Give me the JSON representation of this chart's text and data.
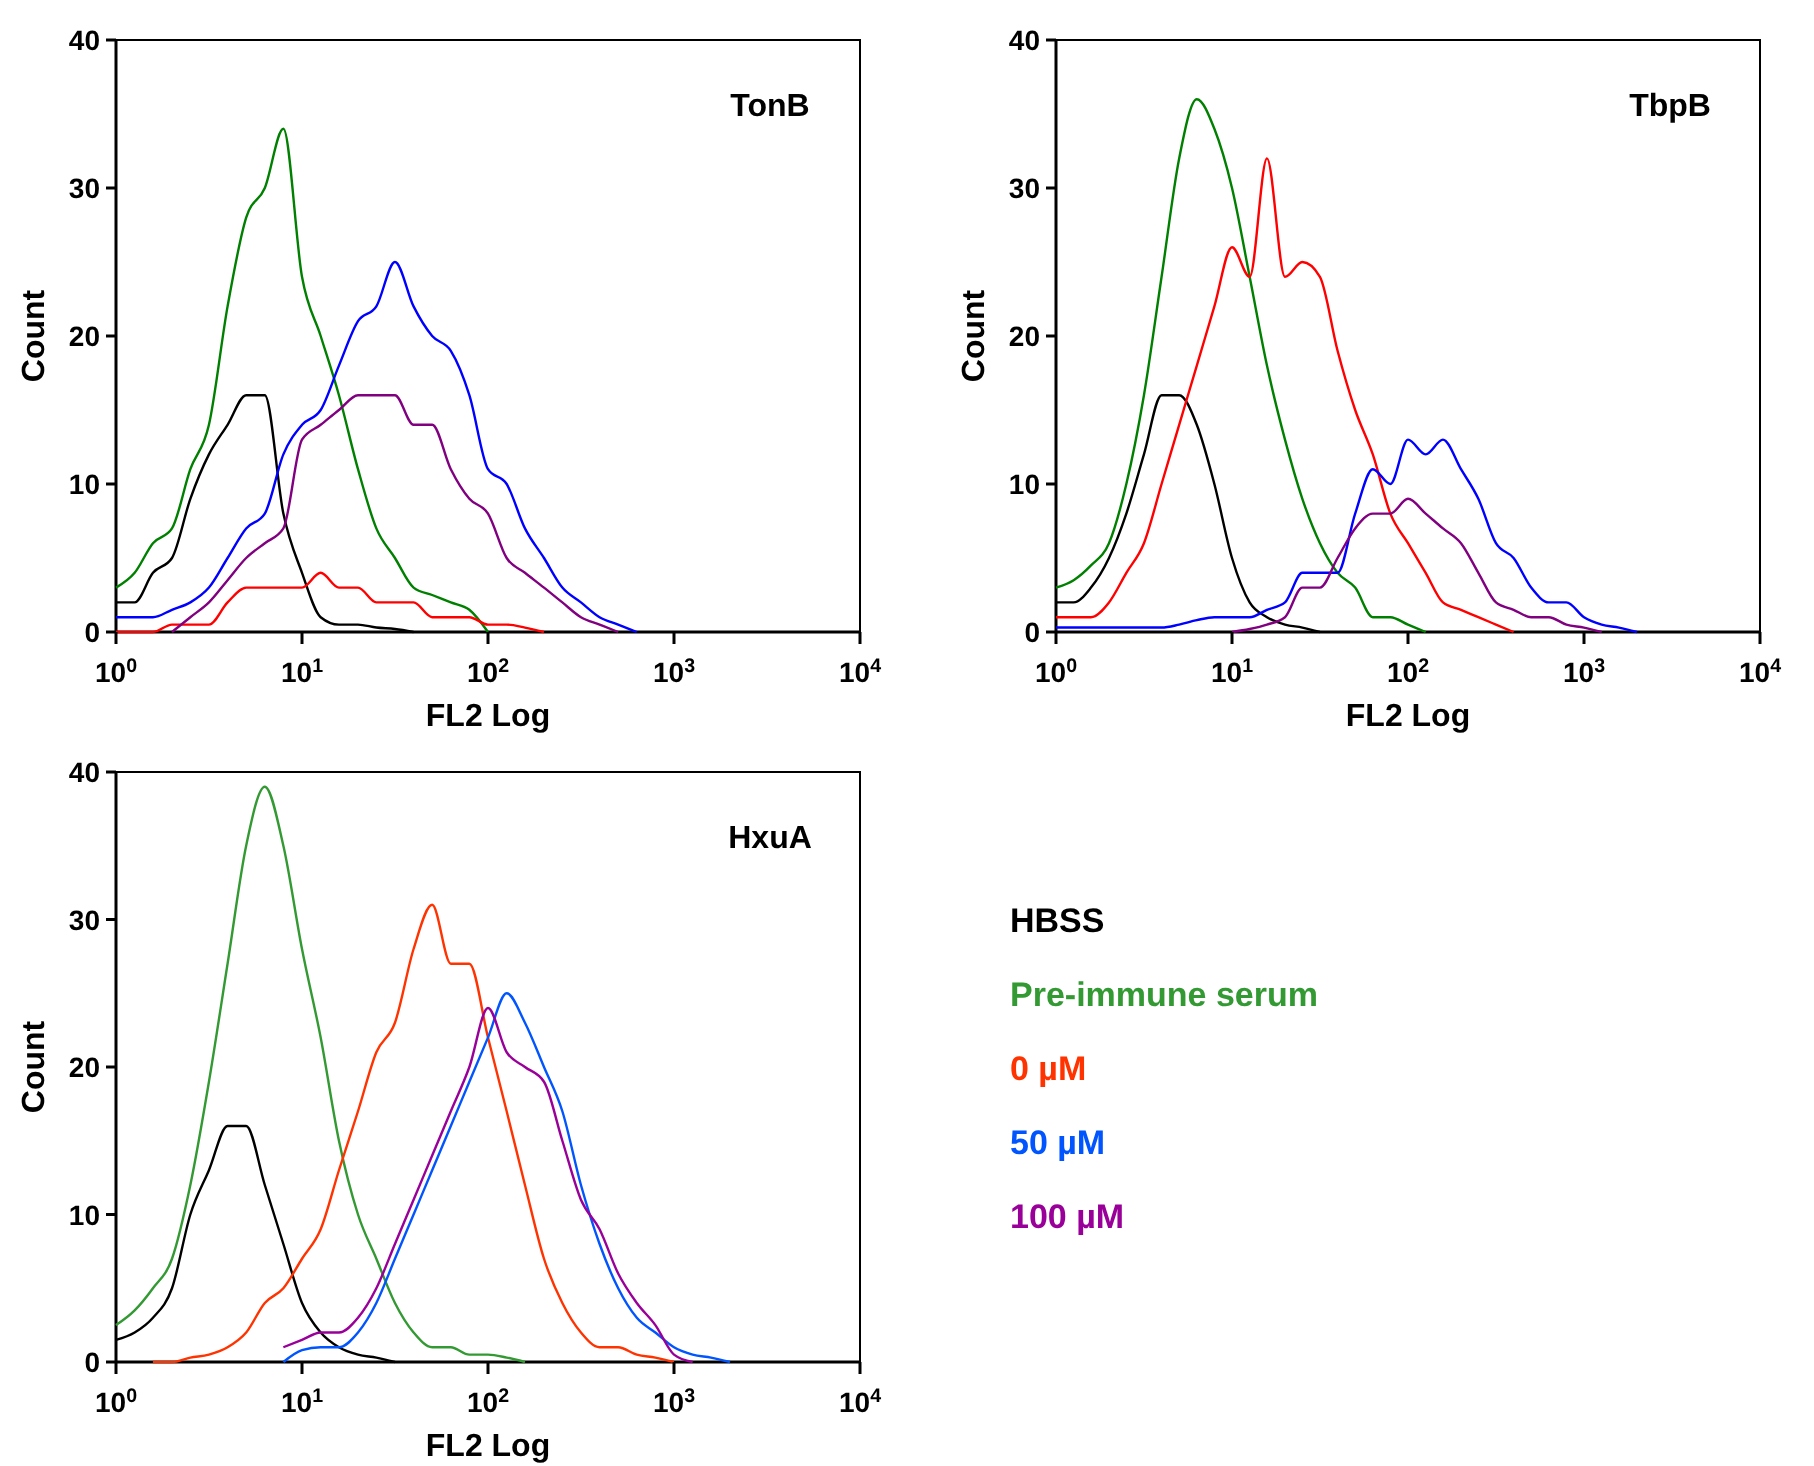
{
  "chart_data": [
    {
      "type": "line",
      "title": "TonB",
      "xlabel": "FL2 Log",
      "ylabel": "Count",
      "log": "x",
      "xlim": [
        1,
        10000
      ],
      "ylim": [
        0,
        40
      ],
      "xticks": [
        {
          "value": 1,
          "label": "10$^{0}$"
        },
        {
          "value": 10,
          "label": "10$^{1}$"
        },
        {
          "value": 100,
          "label": "10$^{2}$"
        },
        {
          "value": 1000,
          "label": "10$^{3}$"
        },
        {
          "value": 10000,
          "label": "10$^{4}$"
        }
      ],
      "yticks": [
        0,
        10,
        20,
        30,
        40
      ],
      "grid": false,
      "legend": false,
      "x": [
        1,
        1.26,
        1.58,
        2,
        2.51,
        3.16,
        3.98,
        5.01,
        6.31,
        7.94,
        10,
        12.6,
        15.8,
        20,
        25.1,
        31.6,
        39.8,
        50.1,
        63.1,
        79.4,
        100,
        126,
        158,
        200,
        251,
        316,
        398,
        501,
        631
      ],
      "series": [
        {
          "color": "#000000",
          "values": [
            2,
            2,
            4,
            5,
            9,
            12,
            14,
            16,
            16,
            8,
            4,
            1,
            0.5,
            0.5,
            0.3,
            0.2,
            0,
            null,
            null,
            null,
            null,
            null,
            null,
            null,
            null,
            null,
            null,
            null,
            null
          ]
        },
        {
          "color": "#008000",
          "values": [
            3,
            4,
            6,
            7,
            11,
            14,
            22,
            28,
            30,
            34,
            24,
            20,
            16,
            11,
            7,
            5,
            3,
            2.5,
            2,
            1.5,
            0,
            null,
            null,
            null,
            null,
            null,
            null,
            null,
            null
          ]
        },
        {
          "color": "#ff0000",
          "values": [
            0,
            0,
            0,
            0.5,
            0.5,
            0.5,
            2,
            3,
            3,
            3,
            3,
            4,
            3,
            3,
            2,
            2,
            2,
            1,
            1,
            1,
            0.5,
            0.5,
            0.3,
            0,
            null,
            null,
            null,
            null,
            null
          ]
        },
        {
          "color": "#0000ff",
          "values": [
            1,
            1,
            1,
            1.5,
            2,
            3,
            5,
            7,
            8,
            12,
            14,
            15,
            18,
            21,
            22,
            25,
            22,
            20,
            19,
            16,
            11,
            10,
            7,
            5,
            3,
            2,
            1,
            0.5,
            0
          ]
        },
        {
          "color": "#800080",
          "values": [
            null,
            null,
            null,
            0,
            1,
            2,
            3.5,
            5,
            6,
            7,
            13,
            14,
            15,
            16,
            16,
            16,
            14,
            14,
            11,
            9,
            8,
            5,
            4,
            3,
            2,
            1,
            0.5,
            0,
            null
          ]
        }
      ]
    },
    {
      "type": "line",
      "title": "TbpB",
      "xlabel": "FL2 Log",
      "ylabel": "Count",
      "log": "x",
      "xlim": [
        1,
        10000
      ],
      "ylim": [
        0,
        40
      ],
      "xticks": [
        {
          "value": 1,
          "label": "10$^{0}$"
        },
        {
          "value": 10,
          "label": "10$^{1}$"
        },
        {
          "value": 100,
          "label": "10$^{2}$"
        },
        {
          "value": 1000,
          "label": "10$^{3}$"
        },
        {
          "value": 10000,
          "label": "10$^{4}$"
        }
      ],
      "yticks": [
        0,
        10,
        20,
        30,
        40
      ],
      "grid": false,
      "legend": false,
      "x": [
        1,
        1.26,
        1.58,
        2,
        2.51,
        3.16,
        3.98,
        5.01,
        6.31,
        7.94,
        10,
        12.6,
        15.8,
        20,
        25.1,
        31.6,
        39.8,
        50.1,
        63.1,
        79.4,
        100,
        126,
        158,
        200,
        251,
        316,
        398,
        501,
        631,
        794,
        1000,
        1260,
        1580,
        2000
      ],
      "series": [
        {
          "color": "#000000",
          "values": [
            2,
            2,
            3,
            5,
            8,
            12,
            16,
            16,
            14,
            10,
            5,
            2,
            1,
            0.5,
            0.3,
            0,
            null,
            null,
            null,
            null,
            null,
            null,
            null,
            null,
            null,
            null,
            null,
            null,
            null,
            null,
            null,
            null,
            null,
            null
          ]
        },
        {
          "color": "#008000",
          "values": [
            3,
            3.5,
            4.5,
            6,
            10,
            16,
            24,
            32,
            36,
            34,
            30,
            24,
            18,
            13,
            9,
            6,
            4,
            3,
            1,
            1,
            0.5,
            0,
            null,
            null,
            null,
            null,
            null,
            null,
            null,
            null,
            null,
            null,
            null,
            null
          ]
        },
        {
          "color": "#ff0000",
          "values": [
            1,
            1,
            1,
            2,
            4,
            6,
            10,
            14,
            18,
            22,
            26,
            24,
            32,
            24,
            25,
            24,
            19,
            15,
            12,
            8,
            6,
            4,
            2,
            1.5,
            1,
            0.5,
            0,
            null,
            null,
            null,
            null,
            null,
            null,
            null
          ]
        },
        {
          "color": "#0000ff",
          "values": [
            0.3,
            0.3,
            0.3,
            0.3,
            0.3,
            0.3,
            0.3,
            0.5,
            0.8,
            1,
            1,
            1,
            1.5,
            2,
            4,
            4,
            4,
            8,
            11,
            10,
            13,
            12,
            13,
            11,
            9,
            6,
            5,
            3,
            2,
            2,
            1,
            0.5,
            0.3,
            0
          ]
        },
        {
          "color": "#800080",
          "values": [
            null,
            null,
            null,
            null,
            null,
            null,
            null,
            null,
            null,
            null,
            0,
            0.2,
            0.5,
            1,
            3,
            3,
            5,
            7,
            8,
            8,
            9,
            8,
            7,
            6,
            4,
            2,
            1.5,
            1,
            1,
            0.5,
            0.3,
            0,
            null,
            null
          ]
        }
      ]
    },
    {
      "type": "line",
      "title": "HxuA",
      "xlabel": "FL2 Log",
      "ylabel": "Count",
      "log": "x",
      "xlim": [
        1,
        10000
      ],
      "ylim": [
        0,
        40
      ],
      "xticks": [
        {
          "value": 1,
          "label": "10$^{0}$"
        },
        {
          "value": 10,
          "label": "10$^{1}$"
        },
        {
          "value": 100,
          "label": "10$^{2}$"
        },
        {
          "value": 1000,
          "label": "10$^{3}$"
        },
        {
          "value": 10000,
          "label": "10$^{4}$"
        }
      ],
      "yticks": [
        0,
        10,
        20,
        30,
        40
      ],
      "grid": false,
      "legend": "right",
      "x": [
        1,
        1.26,
        1.58,
        2,
        2.51,
        3.16,
        3.98,
        5.01,
        6.31,
        7.94,
        10,
        12.6,
        15.8,
        20,
        25.1,
        31.6,
        39.8,
        50.1,
        63.1,
        79.4,
        100,
        126,
        158,
        200,
        251,
        316,
        398,
        501,
        631,
        794,
        1000,
        1260,
        1580,
        2000
      ],
      "series": [
        {
          "name": "HBSS",
          "color": "#000000",
          "values": [
            1.5,
            2,
            3,
            5,
            10,
            13,
            16,
            16,
            12,
            8,
            4,
            2,
            1,
            0.5,
            0.3,
            0,
            null,
            null,
            null,
            null,
            null,
            null,
            null,
            null,
            null,
            null,
            null,
            null,
            null,
            null,
            null,
            null,
            null,
            null
          ]
        },
        {
          "name": "Pre-immune serum",
          "color": "#339933",
          "values": [
            2.5,
            3.5,
            5,
            7,
            12,
            19,
            27,
            35,
            39,
            35,
            28,
            22,
            15,
            10,
            7,
            4,
            2,
            1,
            1,
            0.5,
            0.5,
            0.3,
            0,
            null,
            null,
            null,
            null,
            null,
            null,
            null,
            null,
            null,
            null,
            null
          ]
        },
        {
          "name": "0 µM",
          "color": "#ff3300",
          "values": [
            null,
            null,
            0,
            0,
            0.3,
            0.5,
            1,
            2,
            4,
            5,
            7,
            9,
            13,
            17,
            21,
            23,
            28,
            31,
            27,
            27,
            22,
            17,
            12,
            7,
            4,
            2,
            1,
            1,
            0.5,
            0.3,
            0,
            null,
            null,
            null
          ]
        },
        {
          "name": "50 µM",
          "color": "#0055ff",
          "values": [
            null,
            null,
            null,
            null,
            null,
            null,
            null,
            null,
            null,
            0,
            0.8,
            1,
            1,
            2,
            4,
            7,
            10,
            13,
            16,
            19,
            22,
            25,
            23,
            20,
            17,
            12,
            8,
            5,
            3,
            2,
            1,
            0.5,
            0.3,
            0
          ]
        },
        {
          "name": "100 µM",
          "color": "#990099",
          "values": [
            null,
            null,
            null,
            null,
            null,
            null,
            null,
            null,
            null,
            1,
            1.5,
            2,
            2,
            3,
            5,
            8,
            11,
            14,
            17,
            20,
            24,
            21,
            20,
            19,
            15,
            11,
            9,
            6,
            4,
            2.5,
            0.5,
            0,
            null,
            null
          ]
        }
      ]
    }
  ]
}
